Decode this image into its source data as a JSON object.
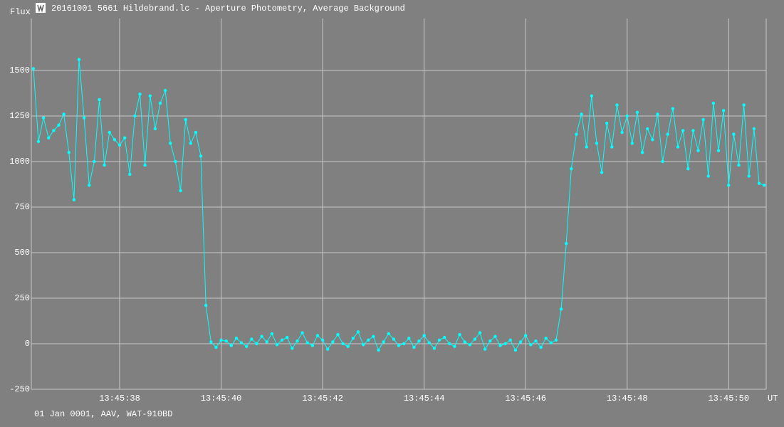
{
  "chart_data": {
    "type": "line",
    "title": "20161001 5661 Hildebrand.lc - Aperture Photometry, Average Background",
    "y_label": "Flux",
    "x_label": "UT",
    "footer": "01 Jan 0001, AAV, WAT-910BD",
    "color": "#00ffff",
    "grid": true,
    "xlim": [
      36.26,
      50.74
    ],
    "ylim": [
      -250,
      1785
    ],
    "xticks": [
      {
        "value": 38,
        "label": "13:45:38"
      },
      {
        "value": 40,
        "label": "13:45:40"
      },
      {
        "value": 42,
        "label": "13:45:42"
      },
      {
        "value": 44,
        "label": "13:45:44"
      },
      {
        "value": 46,
        "label": "13:45:46"
      },
      {
        "value": 48,
        "label": "13:45:48"
      },
      {
        "value": 50,
        "label": "13:45:50"
      }
    ],
    "yticks": [
      -250,
      0,
      250,
      500,
      750,
      1000,
      1250,
      1500
    ],
    "x": [
      36.3,
      36.4,
      36.5,
      36.6,
      36.7,
      36.8,
      36.9,
      37.0,
      37.1,
      37.2,
      37.3,
      37.4,
      37.5,
      37.6,
      37.7,
      37.8,
      37.9,
      38.0,
      38.1,
      38.2,
      38.3,
      38.4,
      38.5,
      38.6,
      38.7,
      38.8,
      38.9,
      39.0,
      39.1,
      39.2,
      39.3,
      39.4,
      39.5,
      39.6,
      39.7,
      39.8,
      39.9,
      40.0,
      40.1,
      40.2,
      40.3,
      40.4,
      40.5,
      40.6,
      40.7,
      40.8,
      40.9,
      41.0,
      41.1,
      41.2,
      41.3,
      41.4,
      41.5,
      41.6,
      41.7,
      41.8,
      41.9,
      42.0,
      42.1,
      42.2,
      42.3,
      42.4,
      42.5,
      42.6,
      42.7,
      42.8,
      42.9,
      43.0,
      43.1,
      43.2,
      43.3,
      43.4,
      43.5,
      43.6,
      43.7,
      43.8,
      43.9,
      44.0,
      44.1,
      44.2,
      44.3,
      44.4,
      44.5,
      44.6,
      44.7,
      44.8,
      44.9,
      45.0,
      45.1,
      45.2,
      45.3,
      45.4,
      45.5,
      45.6,
      45.7,
      45.8,
      45.9,
      46.0,
      46.1,
      46.2,
      46.3,
      46.4,
      46.5,
      46.6,
      46.7,
      46.8,
      46.9,
      47.0,
      47.1,
      47.2,
      47.3,
      47.4,
      47.5,
      47.6,
      47.7,
      47.8,
      47.9,
      48.0,
      48.1,
      48.2,
      48.3,
      48.4,
      48.5,
      48.6,
      48.7,
      48.8,
      48.9,
      49.0,
      49.1,
      49.2,
      49.3,
      49.4,
      49.5,
      49.6,
      49.7,
      49.8,
      49.9,
      50.0,
      50.1,
      50.2,
      50.3,
      50.4,
      50.5,
      50.6,
      50.7
    ],
    "values": [
      1510,
      1110,
      1240,
      1130,
      1170,
      1200,
      1260,
      1050,
      790,
      1560,
      1240,
      870,
      1000,
      1340,
      980,
      1160,
      1120,
      1090,
      1130,
      930,
      1250,
      1370,
      980,
      1360,
      1180,
      1320,
      1390,
      1100,
      1000,
      840,
      1230,
      1100,
      1160,
      1030,
      210,
      10,
      -20,
      20,
      15,
      -10,
      30,
      5,
      -15,
      25,
      0,
      40,
      10,
      55,
      -5,
      20,
      35,
      -25,
      15,
      60,
      5,
      -10,
      45,
      20,
      -30,
      10,
      50,
      0,
      -15,
      30,
      65,
      -5,
      20,
      40,
      -35,
      10,
      55,
      25,
      -10,
      0,
      30,
      -20,
      15,
      45,
      5,
      -25,
      20,
      35,
      0,
      -15,
      50,
      10,
      -5,
      25,
      60,
      -30,
      15,
      40,
      -10,
      0,
      20,
      -35,
      10,
      45,
      -5,
      15,
      -20,
      30,
      5,
      20,
      190,
      550,
      960,
      1150,
      1260,
      1080,
      1360,
      1100,
      940,
      1210,
      1080,
      1310,
      1160,
      1250,
      1100,
      1270,
      1050,
      1180,
      1120,
      1260,
      1000,
      1150,
      1290,
      1080,
      1170,
      960,
      1170,
      1060,
      1230,
      920,
      1320,
      1060,
      1280,
      870,
      1150,
      980,
      1310,
      920,
      1180,
      880,
      870
    ]
  }
}
